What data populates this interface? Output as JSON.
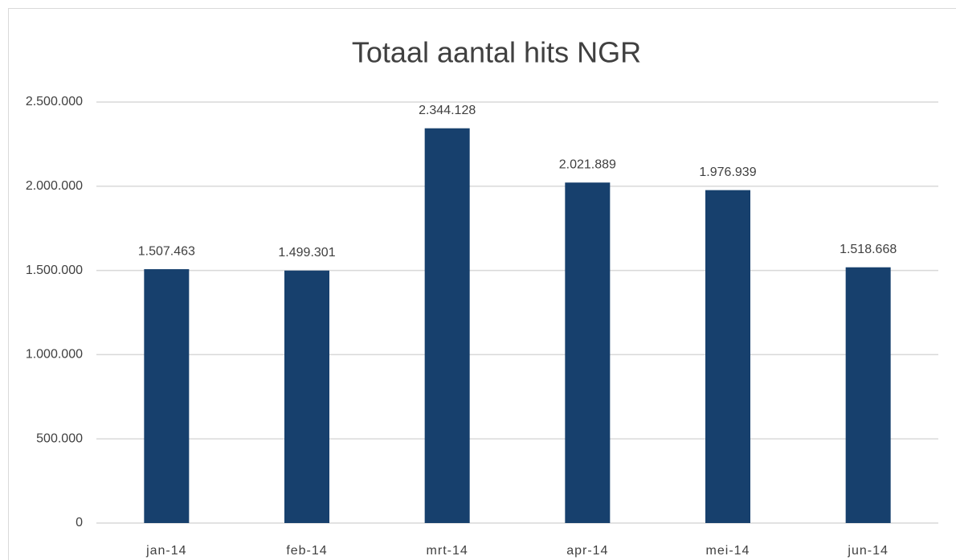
{
  "chart_data": {
    "type": "bar",
    "title": "Totaal aantal hits NGR",
    "categories": [
      "jan-14",
      "feb-14",
      "mrt-14",
      "apr-14",
      "mei-14",
      "jun-14"
    ],
    "values": [
      1507463,
      1499301,
      2344128,
      2021889,
      1976939,
      1518668
    ],
    "value_labels": [
      "1.507.463",
      "1.499.301",
      "2.344.128",
      "2.021.889",
      "1.976.939",
      "1.518.668"
    ],
    "color": "#17406d",
    "ylim": [
      0,
      2500000
    ],
    "yticks": [
      0,
      {
        "value": 500000,
        "label": "500.000"
      },
      {
        "value": 1000000,
        "label": "1.000.000"
      },
      {
        "value": 1500000,
        "label": "1.500.000"
      },
      {
        "value": 2000000,
        "label": "2.000.000"
      },
      {
        "value": 2500000,
        "label": "2.500.000"
      }
    ],
    "grid": true
  }
}
